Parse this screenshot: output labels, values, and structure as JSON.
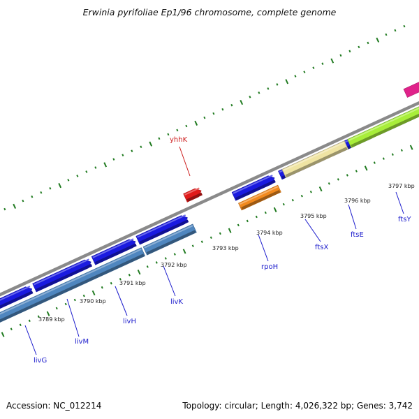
{
  "title": "Erwinia pyrifoliae Ep1/96 chromosome, complete genome",
  "footer": {
    "accession": "Accession: NC_012214",
    "topology": "Topology: circular; Length: 4,026,322 bp; Genes: 3,742"
  },
  "colors": {
    "backbone": "#8a8a8a",
    "cds_forward": "#1a1ae0",
    "ruler_ticks": "#1f7a1f",
    "gene_label": "#1a1acc",
    "highlight_label": "#cc1a1a",
    "livGMHK_operon": "#4f86bf",
    "rpoH_feature": "#f28a1e",
    "ftsXE_feature": "#efe4a3",
    "ftsY_feature": "#a8ee3a",
    "yhhK_feature": "#e11a1a",
    "edge_feature": "#e0228a"
  },
  "ruler_labels": [
    "3789 kbp",
    "3790 kbp",
    "3791 kbp",
    "3792 kbp",
    "3793 kbp",
    "3794 kbp",
    "3795 kbp",
    "3796 kbp",
    "3797 kbp"
  ],
  "genes": [
    {
      "name": "livG"
    },
    {
      "name": "livM"
    },
    {
      "name": "livH"
    },
    {
      "name": "livK"
    },
    {
      "name": "rpoH"
    },
    {
      "name": "ftsX"
    },
    {
      "name": "ftsE"
    },
    {
      "name": "ftsY"
    },
    {
      "name": "yhhK"
    }
  ]
}
